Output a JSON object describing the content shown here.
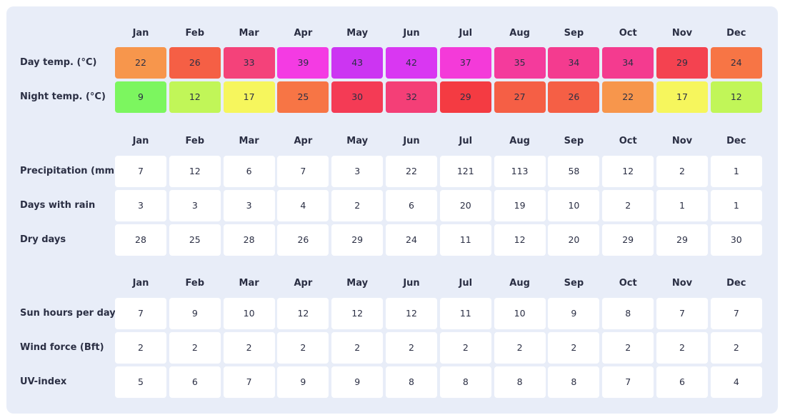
{
  "months": [
    "Jan",
    "Feb",
    "Mar",
    "Apr",
    "May",
    "Jun",
    "Jul",
    "Aug",
    "Sep",
    "Oct",
    "Nov",
    "Dec"
  ],
  "temperature": {
    "rows": [
      {
        "label": "Day temp. (°C)",
        "values": [
          "22",
          "26",
          "33",
          "39",
          "43",
          "42",
          "37",
          "35",
          "34",
          "34",
          "29",
          "24"
        ],
        "colors": [
          "#f7964c",
          "#f55f45",
          "#f4427a",
          "#f43be3",
          "#cc35f2",
          "#d937f2",
          "#f43ad9",
          "#f43b9c",
          "#f43b8f",
          "#f43b8f",
          "#f44250",
          "#f77545"
        ]
      },
      {
        "label": "Night temp. (°C)",
        "values": [
          "9",
          "12",
          "17",
          "25",
          "30",
          "32",
          "29",
          "27",
          "26",
          "22",
          "17",
          "12"
        ],
        "colors": [
          "#7cf65f",
          "#c1f658",
          "#f6f65d",
          "#f77545",
          "#f43b55",
          "#f43f77",
          "#f43b42",
          "#f55f45",
          "#f55f45",
          "#f7964c",
          "#f6f65d",
          "#c1f658"
        ]
      }
    ]
  },
  "precipitation": {
    "rows": [
      {
        "label": "Precipitation (mm)",
        "values": [
          "7",
          "12",
          "6",
          "7",
          "3",
          "22",
          "121",
          "113",
          "58",
          "12",
          "2",
          "1"
        ]
      },
      {
        "label": "Days with rain",
        "values": [
          "3",
          "3",
          "3",
          "4",
          "2",
          "6",
          "20",
          "19",
          "10",
          "2",
          "1",
          "1"
        ]
      },
      {
        "label": "Dry days",
        "values": [
          "28",
          "25",
          "28",
          "26",
          "29",
          "24",
          "11",
          "12",
          "20",
          "29",
          "29",
          "30"
        ]
      }
    ]
  },
  "sun": {
    "rows": [
      {
        "label": "Sun hours per day",
        "values": [
          "7",
          "9",
          "10",
          "12",
          "12",
          "12",
          "11",
          "10",
          "9",
          "8",
          "7",
          "7"
        ]
      },
      {
        "label": "Wind force (Bft)",
        "values": [
          "2",
          "2",
          "2",
          "2",
          "2",
          "2",
          "2",
          "2",
          "2",
          "2",
          "2",
          "2"
        ]
      },
      {
        "label": "UV-index",
        "values": [
          "5",
          "6",
          "7",
          "9",
          "9",
          "8",
          "8",
          "8",
          "8",
          "7",
          "6",
          "4"
        ]
      }
    ]
  }
}
